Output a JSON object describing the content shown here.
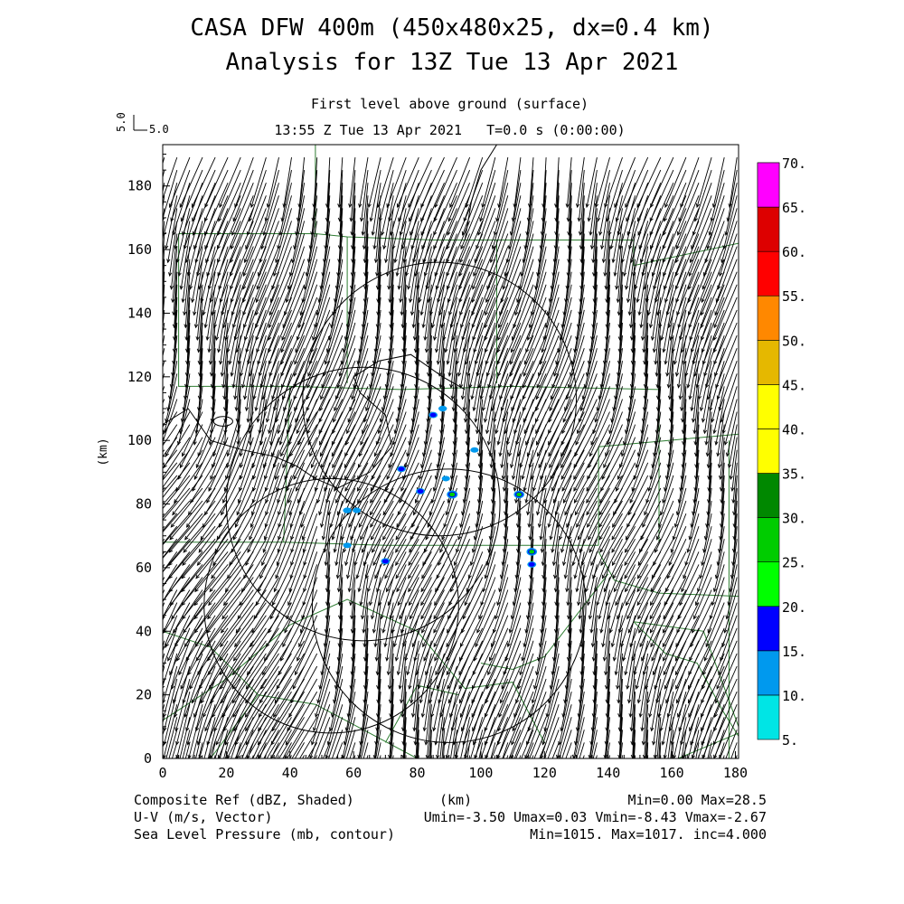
{
  "header": {
    "title_line1": "CASA DFW 400m (450x480x25, dx=0.4 km)",
    "title_line2": "Analysis for 13Z Tue 13 Apr 2021",
    "subtitle_line1": "First level above ground (surface)",
    "subtitle_line2": "13:55 Z Tue 13 Apr 2021   T=0.0 s (0:00:00)",
    "ref_vector_v": "5.0",
    "ref_vector_u": "5.0"
  },
  "footer": {
    "line1_left": "Composite Ref (dBZ, Shaded)",
    "line2_left": "U-V (m/s, Vector)",
    "line3_left": "Sea Level Pressure (mb, contour)",
    "xaxis_unit": "(km)",
    "line1_right": "Min=0.00 Max=28.5",
    "line2_right": "Umin=-3.50 Umax=0.03 Vmin=-8.43 Vmax=-2.67",
    "line3_right": "Min=1015. Max=1017. inc=4.000"
  },
  "chart_data": {
    "type": "heatmap",
    "xlabel": "",
    "ylabel": "(km)",
    "xlim": [
      0,
      181
    ],
    "ylim": [
      0,
      193
    ],
    "xticks": [
      0,
      20,
      40,
      60,
      80,
      100,
      120,
      140,
      160,
      180
    ],
    "yticks": [
      0,
      20,
      40,
      60,
      80,
      100,
      120,
      140,
      160,
      180
    ],
    "grid": false,
    "colorbar": {
      "levels": [
        "5.",
        "10.",
        "15.",
        "20.",
        "25.",
        "30.",
        "35.",
        "40.",
        "45.",
        "50.",
        "55.",
        "60.",
        "65.",
        "70."
      ],
      "colors": [
        "#00e5e5",
        "#0099ee",
        "#0000ff",
        "#00ff00",
        "#00cc00",
        "#008800",
        "#ffff00",
        "#ffff00",
        "#e5b800",
        "#ff8800",
        "#ff0000",
        "#dd0000",
        "#bb0000",
        "#ff00ff"
      ]
    },
    "wind": {
      "u_mean": -1.5,
      "v_mean": -5.5,
      "ref_speed": 5.0
    },
    "echoes": [
      {
        "x": 85,
        "y": 108,
        "dbz": 15
      },
      {
        "x": 88,
        "y": 110,
        "dbz": 12
      },
      {
        "x": 75,
        "y": 91,
        "dbz": 15
      },
      {
        "x": 98,
        "y": 97,
        "dbz": 10
      },
      {
        "x": 81,
        "y": 84,
        "dbz": 15
      },
      {
        "x": 89,
        "y": 88,
        "dbz": 10
      },
      {
        "x": 91,
        "y": 83,
        "dbz": 28
      },
      {
        "x": 112,
        "y": 83,
        "dbz": 25
      },
      {
        "x": 58,
        "y": 78,
        "dbz": 12
      },
      {
        "x": 61,
        "y": 78,
        "dbz": 10
      },
      {
        "x": 58,
        "y": 67,
        "dbz": 10
      },
      {
        "x": 70,
        "y": 62,
        "dbz": 15
      },
      {
        "x": 116,
        "y": 65,
        "dbz": 25
      },
      {
        "x": 116,
        "y": 61,
        "dbz": 15
      }
    ],
    "radar_circles": [
      {
        "cx": 87,
        "cy": 113,
        "r": 43
      },
      {
        "cx": 63,
        "cy": 80,
        "r": 43
      },
      {
        "cx": 90,
        "cy": 48,
        "r": 43
      },
      {
        "cx": 53,
        "cy": 48,
        "r": 40
      }
    ]
  }
}
